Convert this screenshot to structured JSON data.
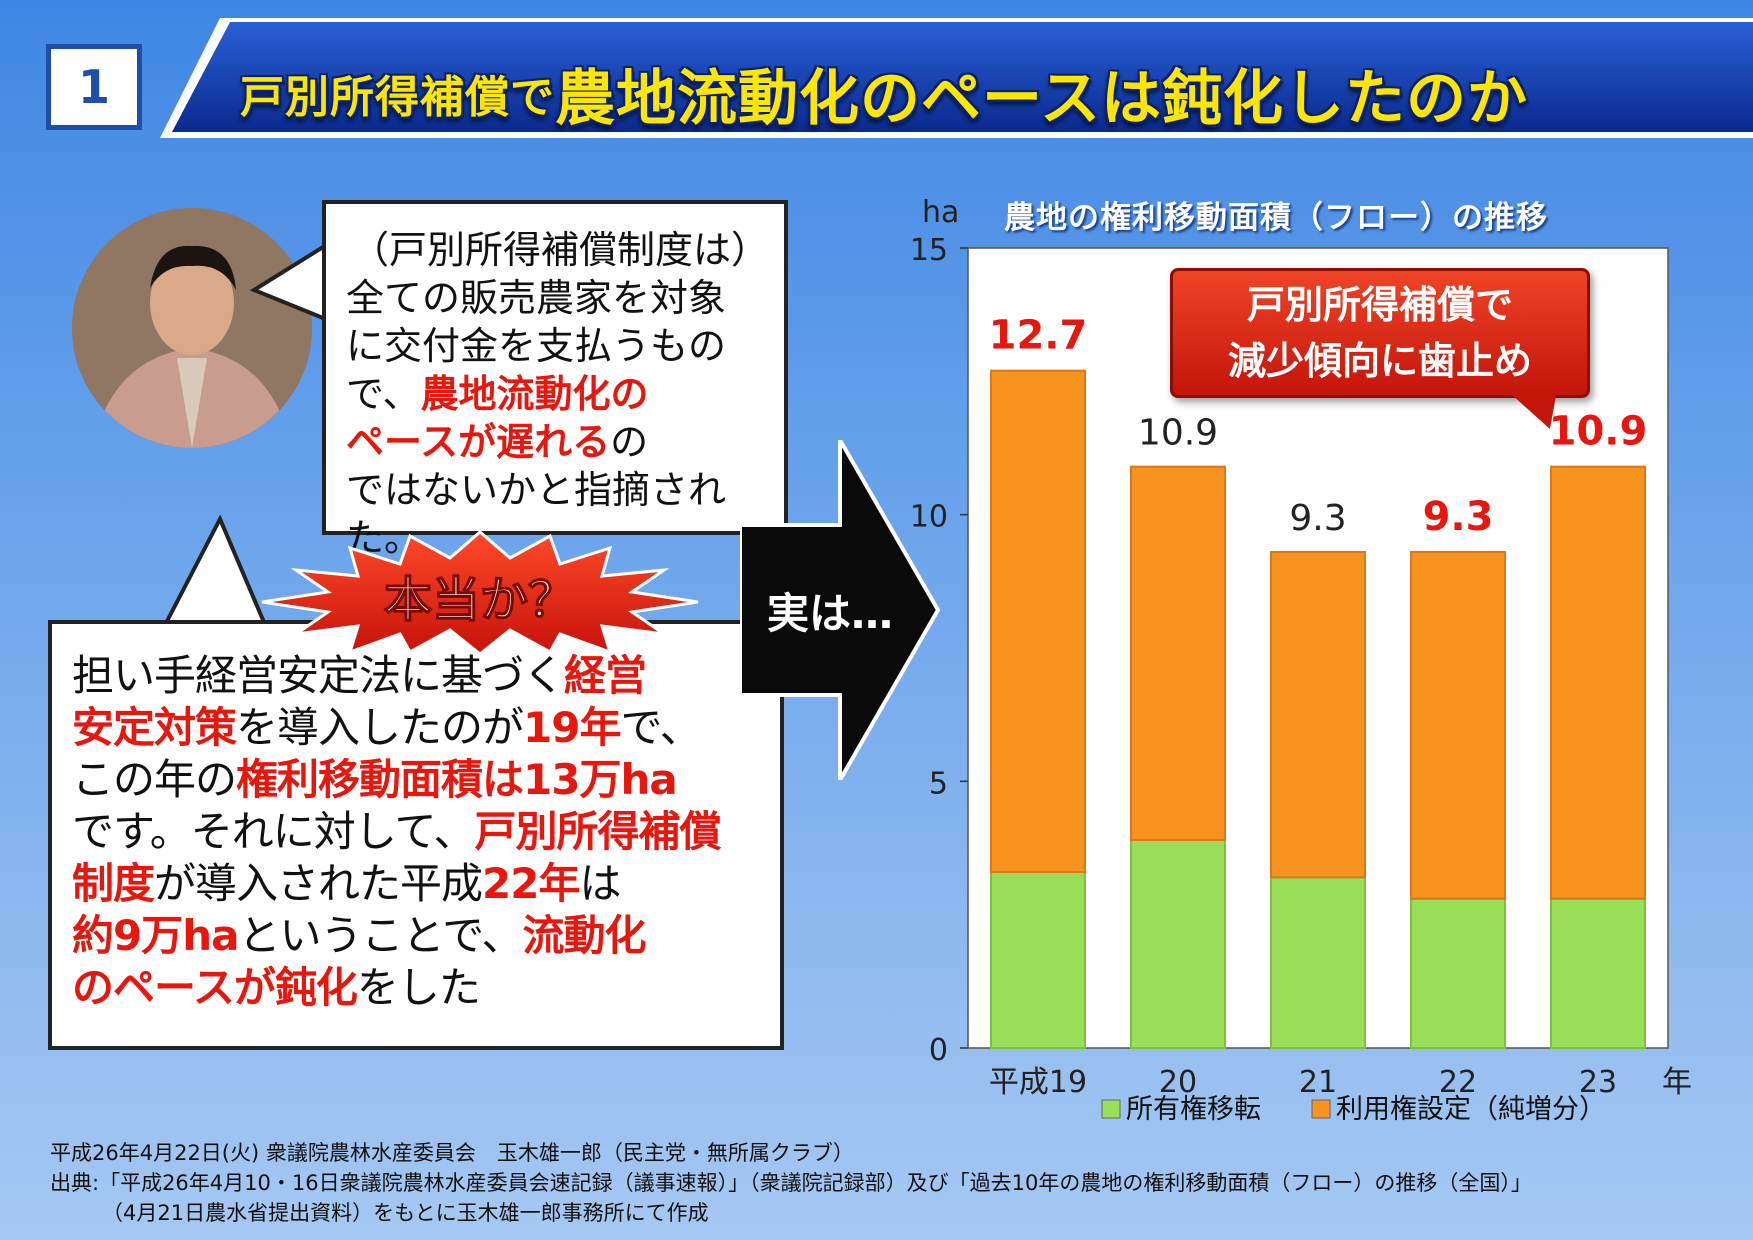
{
  "header": {
    "number": "1",
    "title_part1": "戸別所得補償で",
    "title_part2": "農地流動化のペースは鈍化したのか"
  },
  "bubble_top": {
    "line1": "（戸別所得補償制度は）",
    "line2": "全ての販売農家を対象",
    "line3": "に交付金を支払うもの",
    "line4a": "で、",
    "line4b": "農地流動化の",
    "line5a": "ペースが遅れる",
    "line5b": "の",
    "line6": "ではないかと指摘された。"
  },
  "starburst_label": "本当か？",
  "arrow_label": "実は…",
  "bubble_bottom": {
    "l1a": "担い手経営安定法に基づく",
    "l1b": "経営",
    "l2a": "安定対策",
    "l2b": "を導入したのが",
    "l2c": "19年",
    "l2d": "で、",
    "l3a": "この年の",
    "l3b": "権利移動面積は13万ha",
    "l4a": "です。それに対して、",
    "l4b": "戸別所得補償",
    "l5a": "制度",
    "l5b": "が導入された平成",
    "l5c": "22年",
    "l5d": "は",
    "l6a": "約9万ha",
    "l6b": "ということで、",
    "l6c": "流動化",
    "l7a": "のペースが鈍化",
    "l7b": "をした"
  },
  "callout": {
    "line1": "戸別所得補償で",
    "line2": "減少傾向に歯止め"
  },
  "chart_data": {
    "type": "bar",
    "stacked": true,
    "title": "農地の権利移動面積（フロー）の推移",
    "ylabel": "ha",
    "xunit": "年",
    "ylim": [
      0,
      15
    ],
    "yticks": [
      "0",
      "5",
      "10",
      "15"
    ],
    "categories": [
      "平成19",
      "20",
      "21",
      "22",
      "23"
    ],
    "series": [
      {
        "name": "所有権移転",
        "color": "#9bde5a",
        "values": [
          3.3,
          3.9,
          3.2,
          2.8,
          2.8
        ]
      },
      {
        "name": "利用権設定（純増分）",
        "color": "#f7931e",
        "values": [
          9.4,
          7.0,
          6.1,
          6.5,
          8.1
        ]
      }
    ],
    "totals": [
      "12.7",
      "10.9",
      "9.3",
      "9.3",
      "10.9"
    ],
    "highlighted_totals": [
      true,
      false,
      false,
      true,
      true
    ],
    "grid": false,
    "legend": "bottom-right"
  },
  "colors": {
    "accent_red": "#e8170e",
    "title_yellow": "#ffe600",
    "banner_blue": "#1d4fa8"
  },
  "footer": {
    "line1": "平成26年4月22日(火) 衆議院農林水産委員会　玉木雄一郎（民主党・無所属クラブ）",
    "line2": "出典:「平成26年4月10・16日衆議院農林水産委員会速記録（議事速報）」（衆議院記録部）及び「過去10年の農地の権利移動面積（フロー）の推移（全国）」",
    "line3": "（4月21日農水省提出資料）をもとに玉木雄一郎事務所にて作成"
  }
}
